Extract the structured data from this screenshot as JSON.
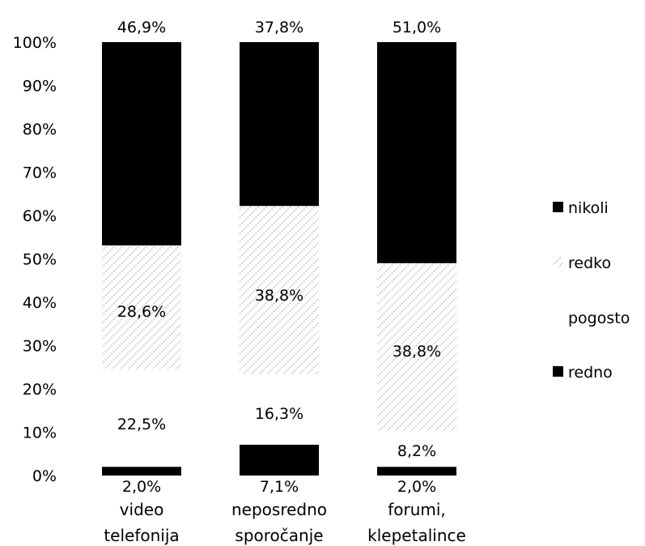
{
  "chart_data": {
    "type": "bar",
    "stacked": true,
    "title": "",
    "xlabel": "",
    "ylabel": "",
    "ylim": [
      0,
      100
    ],
    "y_ticks": [
      "0%",
      "10%",
      "20%",
      "30%",
      "40%",
      "50%",
      "60%",
      "70%",
      "80%",
      "90%",
      "100%"
    ],
    "grid": false,
    "legend_position": "right",
    "categories": [
      [
        "video",
        "telefonija"
      ],
      [
        "neposredno",
        "sporočanje"
      ],
      [
        "forumi,",
        "klepetalince"
      ]
    ],
    "series": [
      {
        "name": "redno",
        "values": [
          2.0,
          7.1,
          2.0
        ],
        "labels": [
          "2,0%",
          "7,1%",
          "2,0%"
        ],
        "color": "#000000",
        "pattern": "solid"
      },
      {
        "name": "pogosto",
        "values": [
          22.5,
          16.3,
          8.2
        ],
        "labels": [
          "22,5%",
          "16,3%",
          "8,2%"
        ],
        "color": "#ffffff",
        "pattern": "none"
      },
      {
        "name": "redko",
        "values": [
          28.6,
          38.8,
          38.8
        ],
        "labels": [
          "28,6%",
          "38,8%",
          "38,8%"
        ],
        "color": "#555555",
        "pattern": "hatch"
      },
      {
        "name": "nikoli",
        "values": [
          46.9,
          37.8,
          51.0
        ],
        "labels": [
          "46,9%",
          "37,8%",
          "51,0%"
        ],
        "color": "#000000",
        "pattern": "solid"
      }
    ],
    "legend_order": [
      "nikoli",
      "redko",
      "pogosto",
      "redno"
    ]
  }
}
